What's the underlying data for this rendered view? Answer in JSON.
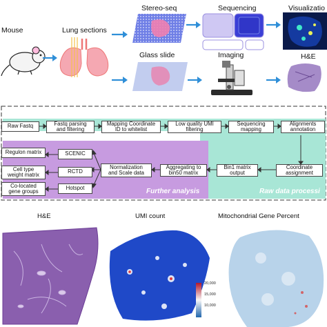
{
  "top": {
    "mouse_label": "Mouse",
    "lung_label": "Lung sections",
    "stereo_label": "Stereo-seq",
    "glass_label": "Glass slide",
    "sequencing_label": "Sequencing",
    "imaging_label": "Imaging",
    "visualization_label": "Visualizatio",
    "he_label": "H&E"
  },
  "workflow": {
    "row1": [
      "Raw Fastq",
      "Fastq parsing\nand filtering",
      "Mapping Coordinate\nID to whitelist",
      "Low quality UMI\nfiltering",
      "Sequencing\nmapping",
      "Alignments\nannotation"
    ],
    "row2_right": [
      "Coordinate\nassignment",
      "Bin1 matrix\noutput",
      "Aggregating to\nbin50 matrix",
      "Normalization\nand Scale data"
    ],
    "methods": [
      "SCENIC",
      "RCTD",
      "Hotspot"
    ],
    "outputs": [
      "Regulon matrix",
      "Cell type\nweight matrix",
      "Co-located\ngene groups"
    ],
    "further_label": "Further analysis",
    "raw_label": "Raw data processi"
  },
  "bottom": {
    "he_title": "H&E",
    "umi_title": "UMI count",
    "mito_title": "Mitochondrial Gene Percent",
    "colorbar_ticks": [
      "20,000",
      "15,000",
      "10,000"
    ]
  },
  "colors": {
    "arrow_blue": "#2f8fd8",
    "panel_teal": "#a8e6d6",
    "panel_purple": "#c79be0",
    "he_purple": "#8a5fae",
    "umi_blue": "#1f49c8",
    "mito_light": "#b8d3ea"
  }
}
